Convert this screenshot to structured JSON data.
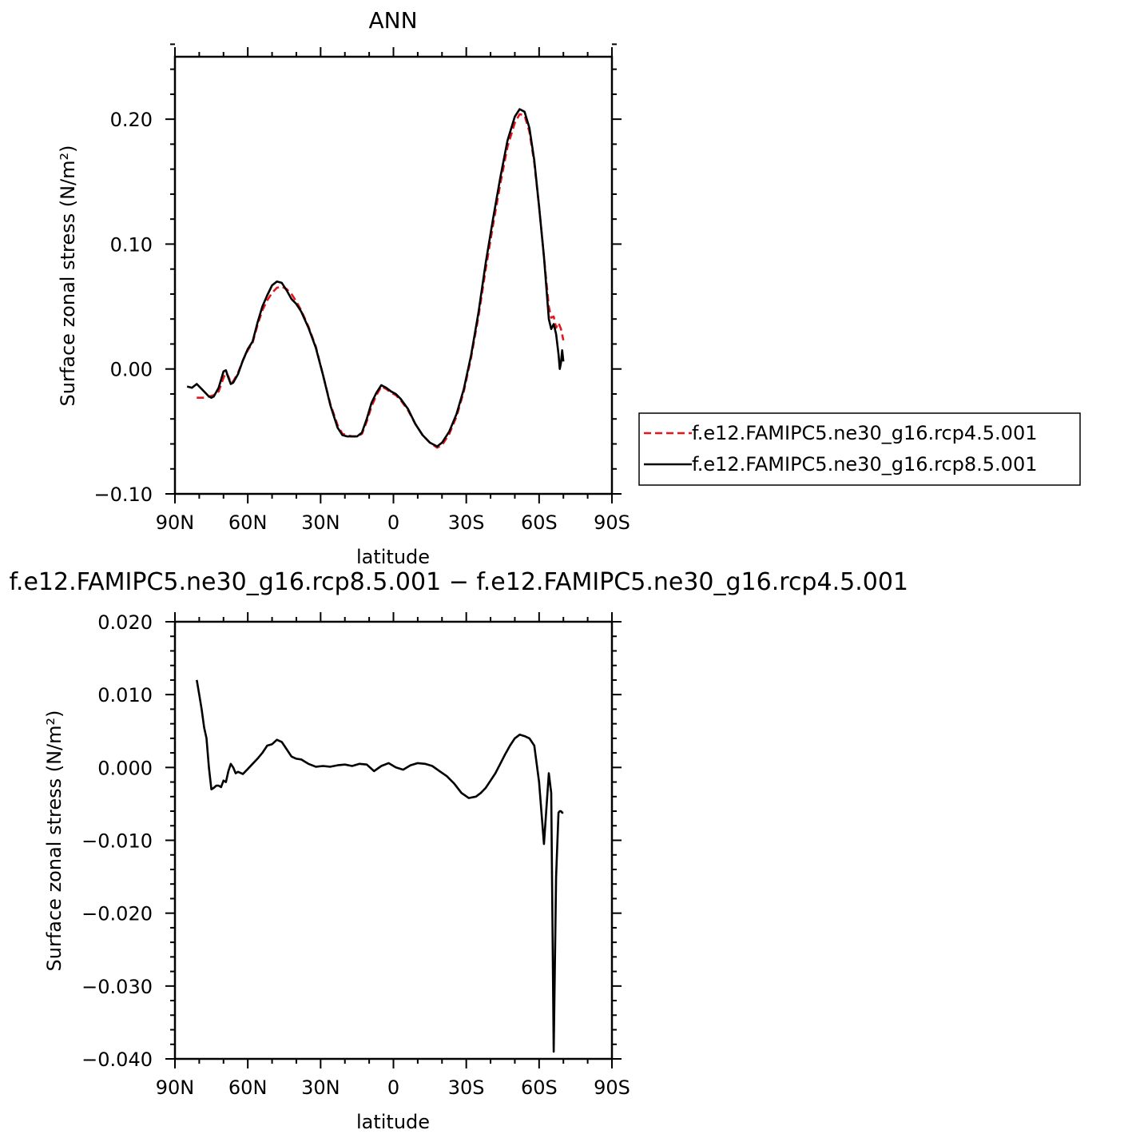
{
  "chart_data": [
    {
      "type": "line",
      "title": "ANN",
      "xlabel": "latitude",
      "ylabel": "Surface zonal stress (N/m²)",
      "xlim": [
        -90,
        90
      ],
      "ylim": [
        -0.1,
        0.25
      ],
      "x_ticks": [
        -90,
        -60,
        -30,
        0,
        30,
        60,
        90
      ],
      "x_tick_labels": [
        "90N",
        "60N",
        "30N",
        "0",
        "30S",
        "60S",
        "90S"
      ],
      "y_ticks": [
        -0.1,
        0.0,
        0.1,
        0.2
      ],
      "y_tick_labels": [
        "−0.10",
        "0.00",
        "0.10",
        "0.20"
      ],
      "legend_position": "right",
      "series": [
        {
          "name": "f.e12.FAMIPC5.ne30_g16.rcp4.5.001",
          "color": "#e8141c",
          "dash": "dashed",
          "x": [
            -81,
            -78,
            -76,
            -74,
            -72,
            -70,
            -69,
            -68,
            -67,
            -66,
            -64,
            -62,
            -60,
            -58,
            -56,
            -54,
            -52,
            -50,
            -48,
            -46,
            -44,
            -42,
            -40,
            -38,
            -35,
            -32,
            -29,
            -26,
            -23,
            -21,
            -19,
            -17,
            -15,
            -13,
            -11,
            -9,
            -7,
            -5,
            -3,
            -1,
            1,
            3,
            6,
            9,
            12,
            15,
            18,
            20,
            23,
            26,
            29,
            32,
            35,
            38,
            41,
            44,
            47,
            50,
            52,
            54,
            56,
            58,
            60,
            62,
            64,
            65,
            66,
            67,
            68,
            69,
            70
          ],
          "y": [
            -0.023,
            -0.023,
            -0.022,
            -0.021,
            -0.018,
            -0.007,
            -0.003,
            -0.006,
            -0.011,
            -0.01,
            -0.003,
            0.007,
            0.015,
            0.021,
            0.035,
            0.047,
            0.055,
            0.061,
            0.065,
            0.066,
            0.064,
            0.06,
            0.054,
            0.047,
            0.034,
            0.018,
            -0.005,
            -0.028,
            -0.045,
            -0.052,
            -0.053,
            -0.054,
            -0.054,
            -0.052,
            -0.042,
            -0.03,
            -0.021,
            -0.014,
            -0.016,
            -0.019,
            -0.021,
            -0.025,
            -0.033,
            -0.044,
            -0.053,
            -0.059,
            -0.063,
            -0.061,
            -0.052,
            -0.038,
            -0.018,
            0.009,
            0.042,
            0.08,
            0.115,
            0.148,
            0.178,
            0.197,
            0.204,
            0.203,
            0.19,
            0.165,
            0.13,
            0.09,
            0.05,
            0.041,
            0.042,
            0.033,
            0.037,
            0.032,
            0.023
          ]
        },
        {
          "name": "f.e12.FAMIPC5.ne30_g16.rcp8.5.001",
          "color": "#000000",
          "dash": "solid",
          "x": [
            -85,
            -83,
            -81,
            -79,
            -77,
            -76,
            -75,
            -74,
            -72,
            -70,
            -69,
            -68,
            -67,
            -66,
            -64,
            -62,
            -60,
            -58,
            -56,
            -54,
            -52,
            -50,
            -48,
            -46,
            -44,
            -42,
            -40,
            -38,
            -35,
            -32,
            -29,
            -26,
            -23,
            -21,
            -19,
            -17,
            -15,
            -13,
            -11,
            -9,
            -7,
            -5,
            -3,
            -1,
            1,
            3,
            6,
            9,
            12,
            15,
            18,
            20,
            23,
            26,
            29,
            32,
            35,
            38,
            41,
            44,
            47,
            50,
            52,
            54,
            56,
            58,
            60,
            62,
            64,
            65,
            66,
            67,
            68,
            68.5,
            69,
            69.5,
            70
          ],
          "y": [
            -0.014,
            -0.015,
            -0.012,
            -0.016,
            -0.02,
            -0.022,
            -0.023,
            -0.022,
            -0.015,
            -0.002,
            -0.001,
            -0.007,
            -0.012,
            -0.011,
            -0.004,
            0.007,
            0.016,
            0.022,
            0.037,
            0.05,
            0.059,
            0.067,
            0.07,
            0.069,
            0.063,
            0.056,
            0.052,
            0.046,
            0.033,
            0.017,
            -0.005,
            -0.029,
            -0.047,
            -0.053,
            -0.054,
            -0.054,
            -0.054,
            -0.051,
            -0.04,
            -0.027,
            -0.019,
            -0.013,
            -0.015,
            -0.018,
            -0.02,
            -0.024,
            -0.032,
            -0.044,
            -0.053,
            -0.059,
            -0.062,
            -0.059,
            -0.05,
            -0.036,
            -0.016,
            0.011,
            0.045,
            0.085,
            0.12,
            0.153,
            0.183,
            0.202,
            0.208,
            0.206,
            0.193,
            0.167,
            0.13,
            0.09,
            0.04,
            0.032,
            0.036,
            0.028,
            0.012,
            0.0,
            0.005,
            0.015,
            0.006
          ]
        }
      ]
    },
    {
      "type": "line",
      "title": "f.e12.FAMIPC5.ne30_g16.rcp8.5.001 − f.e12.FAMIPC5.ne30_g16.rcp4.5.001",
      "xlabel": "latitude",
      "ylabel": "Surface zonal stress (N/m²)",
      "xlim": [
        -90,
        90
      ],
      "ylim": [
        -0.04,
        0.02
      ],
      "x_ticks": [
        -90,
        -60,
        -30,
        0,
        30,
        60,
        90
      ],
      "x_tick_labels": [
        "90N",
        "60N",
        "30N",
        "0",
        "30S",
        "60S",
        "90S"
      ],
      "y_ticks": [
        -0.04,
        -0.03,
        -0.02,
        -0.01,
        0.0,
        0.01,
        0.02
      ],
      "y_tick_labels": [
        "−0.040",
        "−0.030",
        "−0.020",
        "−0.010",
        "0.000",
        "0.010",
        "0.020"
      ],
      "series": [
        {
          "color": "#000000",
          "dash": "solid",
          "x": [
            -81,
            -80,
            -79,
            -78,
            -77,
            -76,
            -75,
            -74,
            -73,
            -72,
            -71,
            -70,
            -69,
            -68,
            -67,
            -66,
            -65,
            -64,
            -62,
            -60,
            -58,
            -56,
            -54,
            -52,
            -50,
            -48,
            -46,
            -44,
            -42,
            -40,
            -38,
            -35,
            -32,
            -29,
            -26,
            -23,
            -20,
            -17,
            -14,
            -11,
            -8,
            -5,
            -2,
            1,
            4,
            7,
            10,
            13,
            16,
            19,
            22,
            25,
            28,
            31,
            34,
            36,
            38,
            40,
            42,
            44,
            46,
            48,
            50,
            52,
            54,
            56,
            58,
            60,
            62,
            64,
            65,
            66,
            67,
            68,
            68.5,
            69,
            69.5,
            70
          ],
          "y": [
            0.012,
            0.01,
            0.008,
            0.0055,
            0.004,
            0.0,
            -0.003,
            -0.0028,
            -0.0025,
            -0.0025,
            -0.0027,
            -0.0018,
            -0.002,
            -0.0005,
            0.0005,
            0.0,
            -0.0008,
            -0.0006,
            -0.0009,
            -0.0002,
            0.0005,
            0.0012,
            0.002,
            0.003,
            0.0032,
            0.0038,
            0.0035,
            0.0025,
            0.0015,
            0.0012,
            0.0011,
            0.0005,
            0.0001,
            0.0002,
            0.0001,
            0.0003,
            0.0004,
            0.0002,
            0.0005,
            0.0004,
            -0.0005,
            0.0002,
            0.0006,
            0.0,
            -0.0003,
            0.0003,
            0.0006,
            0.0005,
            0.0002,
            -0.0005,
            -0.0012,
            -0.0022,
            -0.0035,
            -0.0042,
            -0.004,
            -0.0035,
            -0.0028,
            -0.0018,
            -0.0008,
            0.0005,
            0.0018,
            0.003,
            0.004,
            0.0045,
            0.0043,
            0.004,
            0.003,
            -0.002,
            -0.0105,
            -0.0008,
            -0.0035,
            -0.039,
            -0.015,
            -0.0062,
            -0.006,
            -0.006,
            -0.0062,
            -0.0062
          ]
        }
      ]
    }
  ]
}
